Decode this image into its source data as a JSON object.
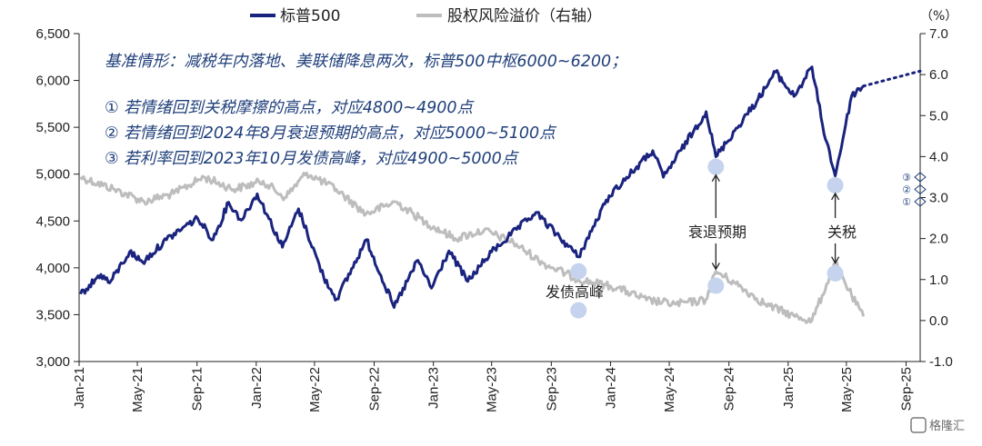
{
  "chart_data": {
    "type": "line",
    "legend": [
      "标普500",
      "股权风险溢价（右轴）"
    ],
    "legend_placement": "top",
    "y_unit_right": "（%）",
    "yticks_left": [
      "6,500",
      "6,000",
      "5,500",
      "5,000",
      "4,500",
      "4,000",
      "3,500",
      "3,000"
    ],
    "yticks_right": [
      "7.0",
      "6.0",
      "5.0",
      "4.0",
      "3.0",
      "2.0",
      "1.0",
      "0.0",
      "-1.0"
    ],
    "xticks": [
      "Jan-21",
      "May-21",
      "Sep-21",
      "Jan-22",
      "May-22",
      "Sep-22",
      "Jan-23",
      "May-23",
      "Sep-23",
      "Jan-24",
      "May-24",
      "Sep-24",
      "Jan-25",
      "May-25",
      "Sep-25"
    ],
    "ylim_left": [
      3000,
      6500
    ],
    "ylim_right": [
      -1.0,
      7.0
    ],
    "xlim": [
      "2021-01-01",
      "2025-09-30"
    ],
    "grid": false,
    "colors": {
      "spx": "#1a237e",
      "erp": "#bdbdbd",
      "marker": "#c5d3ee",
      "note": "#1f3f7a"
    },
    "series": [
      {
        "name": "标普500",
        "axis": "left",
        "points": [
          [
            "2021-01-04",
            3720
          ],
          [
            "2021-02-15",
            3930
          ],
          [
            "2021-03-05",
            3840
          ],
          [
            "2021-04-15",
            4170
          ],
          [
            "2021-05-12",
            4060
          ],
          [
            "2021-06-30",
            4300
          ],
          [
            "2021-08-15",
            4470
          ],
          [
            "2021-09-02",
            4530
          ],
          [
            "2021-10-04",
            4300
          ],
          [
            "2021-11-05",
            4700
          ],
          [
            "2021-12-01",
            4510
          ],
          [
            "2022-01-03",
            4790
          ],
          [
            "2022-02-24",
            4220
          ],
          [
            "2022-03-29",
            4630
          ],
          [
            "2022-05-20",
            3900
          ],
          [
            "2022-06-16",
            3666
          ],
          [
            "2022-08-16",
            4300
          ],
          [
            "2022-10-12",
            3577
          ],
          [
            "2022-11-30",
            4080
          ],
          [
            "2022-12-28",
            3783
          ],
          [
            "2023-02-02",
            4180
          ],
          [
            "2023-03-13",
            3855
          ],
          [
            "2023-05-01",
            4170
          ],
          [
            "2023-07-31",
            4590
          ],
          [
            "2023-10-27",
            4117
          ],
          [
            "2023-12-29",
            4770
          ],
          [
            "2024-03-28",
            5250
          ],
          [
            "2024-04-19",
            4967
          ],
          [
            "2024-07-16",
            5667
          ],
          [
            "2024-08-05",
            5186
          ],
          [
            "2024-10-31",
            5800
          ],
          [
            "2024-12-06",
            6090
          ],
          [
            "2025-01-13",
            5830
          ],
          [
            "2025-02-19",
            6144
          ],
          [
            "2025-03-13",
            5520
          ],
          [
            "2025-04-08",
            4982
          ],
          [
            "2025-05-12",
            5840
          ],
          [
            "2025-06-05",
            5940
          ]
        ]
      },
      {
        "name": "股权风险溢价（右轴）",
        "axis": "right",
        "points": [
          [
            "2021-01-04",
            3.5
          ],
          [
            "2021-03-15",
            3.2
          ],
          [
            "2021-05-15",
            2.9
          ],
          [
            "2021-07-15",
            3.1
          ],
          [
            "2021-09-15",
            3.5
          ],
          [
            "2021-11-15",
            3.2
          ],
          [
            "2022-01-15",
            3.4
          ],
          [
            "2022-03-01",
            3.0
          ],
          [
            "2022-04-15",
            3.6
          ],
          [
            "2022-06-15",
            3.2
          ],
          [
            "2022-08-15",
            2.6
          ],
          [
            "2022-10-15",
            2.9
          ],
          [
            "2022-12-15",
            2.4
          ],
          [
            "2023-02-15",
            2.0
          ],
          [
            "2023-04-15",
            2.2
          ],
          [
            "2023-06-15",
            1.9
          ],
          [
            "2023-08-15",
            1.4
          ],
          [
            "2023-10-27",
            1.0
          ],
          [
            "2024-01-15",
            0.8
          ],
          [
            "2024-03-15",
            0.5
          ],
          [
            "2024-05-15",
            0.4
          ],
          [
            "2024-07-15",
            0.5
          ],
          [
            "2024-08-05",
            1.2
          ],
          [
            "2024-09-15",
            0.9
          ],
          [
            "2024-11-15",
            0.4
          ],
          [
            "2025-01-15",
            0.1
          ],
          [
            "2025-02-19",
            0.0
          ],
          [
            "2025-04-08",
            1.4
          ],
          [
            "2025-05-12",
            0.6
          ],
          [
            "2025-06-05",
            0.1
          ]
        ]
      },
      {
        "name": "",
        "axis": "left",
        "style": "dotted",
        "points": [
          [
            "2025-06-05",
            5940
          ],
          [
            "2025-09-30",
            6100
          ]
        ]
      }
    ],
    "markers": [
      {
        "date": "2023-10-27",
        "axis": "right",
        "value": 1.2
      },
      {
        "date": "2023-10-27",
        "axis": "right",
        "value": 0.25
      },
      {
        "date": "2024-08-05",
        "axis": "right",
        "value": 3.75
      },
      {
        "date": "2024-08-05",
        "axis": "right",
        "value": 0.85
      },
      {
        "date": "2025-04-08",
        "axis": "right",
        "value": 3.3
      },
      {
        "date": "2025-04-08",
        "axis": "right",
        "value": 1.15
      }
    ],
    "annotations": [
      {
        "text": "发债高峰",
        "date": "2023-10-27"
      },
      {
        "text": "衰退预期",
        "date": "2024-08-05",
        "arrow_up_to": 3.55,
        "arrow_down_to": 1.25
      },
      {
        "text": "关税",
        "date": "2025-04-08",
        "arrow_up_to": 3.1,
        "arrow_down_to": 1.4
      }
    ],
    "scenario_marks": [
      {
        "label": "③",
        "axis": "right",
        "value": 3.5
      },
      {
        "label": "②",
        "axis": "right",
        "value": 3.2
      },
      {
        "label": "①",
        "axis": "right",
        "value": 2.9
      }
    ],
    "notes": [
      "基准情形：减税年内落地、美联储降息两次，标普500中枢6000~6200；",
      "① 若情绪回到关税摩擦的高点，对应4800~4900点",
      "② 若情绪回到2024年8月衰退预期的高点，对应5000~5100点",
      "③ 若利率回到2023年10月发债高峰，对应4900~5000点"
    ]
  },
  "watermark": "格隆汇"
}
